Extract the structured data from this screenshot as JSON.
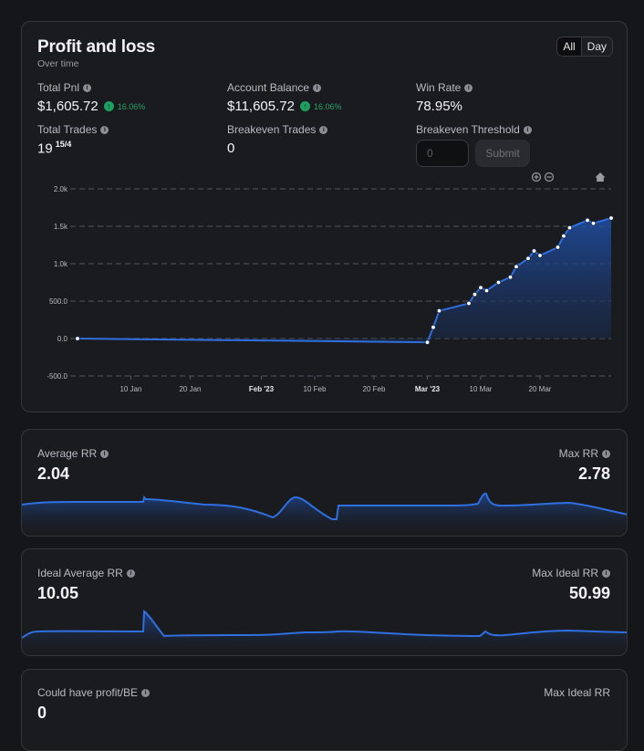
{
  "pnl_card": {
    "title": "Profit and loss",
    "subtitle": "Over time",
    "range_toggle": {
      "all_label": "All",
      "day_label": "Day",
      "selected": "All"
    },
    "stats": {
      "total_pnl": {
        "label": "Total Pnl",
        "value": "$1,605.72",
        "badge": "16.06%"
      },
      "account_balance": {
        "label": "Account Balance",
        "value": "$11,605.72",
        "badge": "16.06%"
      },
      "win_rate": {
        "label": "Win Rate",
        "value": "78.95%"
      },
      "total_trades": {
        "label": "Total Trades",
        "value": "19",
        "superscript": "15/4"
      },
      "breakeven_trades": {
        "label": "Breakeven Trades",
        "value": "0"
      },
      "breakeven_threshold": {
        "label": "Breakeven Threshold",
        "placeholder": "0",
        "submit_label": "Submit"
      }
    },
    "colors": {
      "line": "#2f6fe0",
      "positive": "#29a36a"
    }
  },
  "chart_data": {
    "type": "area",
    "x_tick_labels": [
      "10 Jan",
      "20 Jan",
      "Feb '23",
      "10 Feb",
      "20 Feb",
      "Mar '23",
      "10 Mar",
      "20 Mar"
    ],
    "y_tick_labels": [
      "2.0k",
      "1.5k",
      "1.0k",
      "500.0",
      "0.0",
      "-500.0"
    ],
    "ylim": [
      -500,
      2000
    ],
    "x": [
      "2023-01-01",
      "2023-03-01",
      "2023-03-02",
      "2023-03-03",
      "2023-03-08",
      "2023-03-09",
      "2023-03-10",
      "2023-03-11",
      "2023-03-13",
      "2023-03-15",
      "2023-03-16",
      "2023-03-18",
      "2023-03-19",
      "2023-03-20",
      "2023-03-23",
      "2023-03-24",
      "2023-03-25",
      "2023-03-28",
      "2023-03-29",
      "2023-04-01"
    ],
    "y": [
      0,
      -50,
      150,
      370,
      470,
      590,
      680,
      640,
      750,
      820,
      960,
      1070,
      1170,
      1110,
      1220,
      1370,
      1480,
      1580,
      1540,
      1610
    ],
    "grid": true,
    "toolbar_icons": [
      "zoom-in-icon",
      "zoom-out-icon",
      "home-icon"
    ]
  },
  "rr_card": {
    "left": {
      "label": "Average RR",
      "value": "2.04"
    },
    "right": {
      "label": "Max RR",
      "value": "2.78"
    }
  },
  "ideal_rr_card": {
    "left": {
      "label": "Ideal Average RR",
      "value": "10.05"
    },
    "right": {
      "label": "Max Ideal RR",
      "value": "50.99"
    }
  },
  "could_card": {
    "left": {
      "label": "Could have profit/BE",
      "value": "0"
    },
    "right": {
      "label": "Max Ideal RR"
    }
  }
}
